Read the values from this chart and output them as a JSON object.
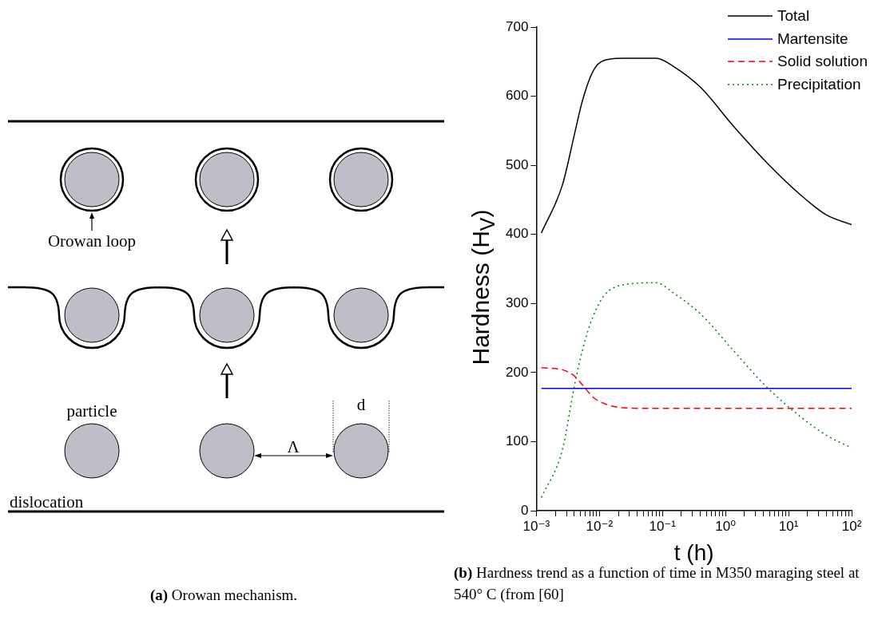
{
  "chart_data": [
    {
      "type": "other",
      "title": "(a) Orowan mechanism.",
      "annotations": [
        "Orowan loop",
        "particle",
        "d",
        "Λ",
        "dislocation"
      ]
    },
    {
      "type": "line",
      "title": "(b) Hardness trend as a function of time in M350 maraging steel at 540° C (from [60]",
      "xlabel": "t (h)",
      "ylabel": "Hardness (H$_{V}$)",
      "log": "x",
      "legend": "top right",
      "x": [
        0.0012,
        0.0026,
        0.004,
        0.0054,
        0.008,
        0.012,
        0.024,
        0.08,
        0.15,
        0.4,
        1.3,
        4.5,
        16,
        40,
        100
      ],
      "xlim": [
        0.001,
        100
      ],
      "xticks": [
        {
          "value": 0.001,
          "label": "10⁻³"
        },
        {
          "value": 0.002,
          "label": null
        },
        {
          "value": 0.003,
          "label": null
        },
        {
          "value": 0.004,
          "label": null
        },
        {
          "value": 0.005,
          "label": null
        },
        {
          "value": 0.006,
          "label": null
        },
        {
          "value": 0.007,
          "label": null
        },
        {
          "value": 0.008,
          "label": null
        },
        {
          "value": 0.009,
          "label": null
        },
        {
          "value": 0.01,
          "label": "10⁻²"
        },
        {
          "value": 0.02,
          "label": null
        },
        {
          "value": 0.03,
          "label": null
        },
        {
          "value": 0.04,
          "label": null
        },
        {
          "value": 0.05,
          "label": null
        },
        {
          "value": 0.06,
          "label": null
        },
        {
          "value": 0.07,
          "label": null
        },
        {
          "value": 0.08,
          "label": null
        },
        {
          "value": 0.09,
          "label": null
        },
        {
          "value": 0.1,
          "label": "10⁻¹"
        },
        {
          "value": 0.2,
          "label": null
        },
        {
          "value": 0.3,
          "label": null
        },
        {
          "value": 0.4,
          "label": null
        },
        {
          "value": 0.5,
          "label": null
        },
        {
          "value": 0.6,
          "label": null
        },
        {
          "value": 0.7,
          "label": null
        },
        {
          "value": 0.8,
          "label": null
        },
        {
          "value": 0.9,
          "label": null
        },
        {
          "value": 1,
          "label": "10⁰"
        },
        {
          "value": 2,
          "label": null
        },
        {
          "value": 3,
          "label": null
        },
        {
          "value": 4,
          "label": null
        },
        {
          "value": 5,
          "label": null
        },
        {
          "value": 6,
          "label": null
        },
        {
          "value": 7,
          "label": null
        },
        {
          "value": 8,
          "label": null
        },
        {
          "value": 9,
          "label": null
        },
        {
          "value": 10,
          "label": "10¹"
        },
        {
          "value": 20,
          "label": null
        },
        {
          "value": 30,
          "label": null
        },
        {
          "value": 40,
          "label": null
        },
        {
          "value": 50,
          "label": null
        },
        {
          "value": 60,
          "label": null
        },
        {
          "value": 70,
          "label": null
        },
        {
          "value": 80,
          "label": null
        },
        {
          "value": 90,
          "label": null
        },
        {
          "value": 100,
          "label": "10²"
        }
      ],
      "ylim": [
        0,
        700
      ],
      "yticks": [
        0,
        100,
        200,
        300,
        400,
        500,
        600,
        700
      ],
      "series": [
        {
          "name": "Total",
          "color": "#000000",
          "line_style": "solid",
          "values": [
            402,
            472,
            544,
            594,
            637,
            652,
            655,
            655,
            643,
            613,
            558,
            504,
            456,
            428,
            414
          ]
        },
        {
          "name": "Martensite",
          "color": "#0000ff",
          "line_style": "solid",
          "values": [
            177,
            177,
            177,
            177,
            177,
            177,
            177,
            177,
            177,
            177,
            177,
            177,
            177,
            177,
            177
          ]
        },
        {
          "name": "Solid solution",
          "color": "#ff0000",
          "line_style": "dashed",
          "values": [
            207,
            204,
            195,
            182,
            164,
            155,
            149,
            148,
            148,
            148,
            148,
            148,
            148,
            148,
            148
          ]
        },
        {
          "name": "Precipitation",
          "color": "#008000",
          "line_style": "dotted",
          "values": [
            19,
            89,
            180,
            233,
            282,
            312,
            327,
            330,
            315,
            285,
            233,
            179,
            135,
            109,
            91
          ]
        }
      ]
    }
  ]
}
